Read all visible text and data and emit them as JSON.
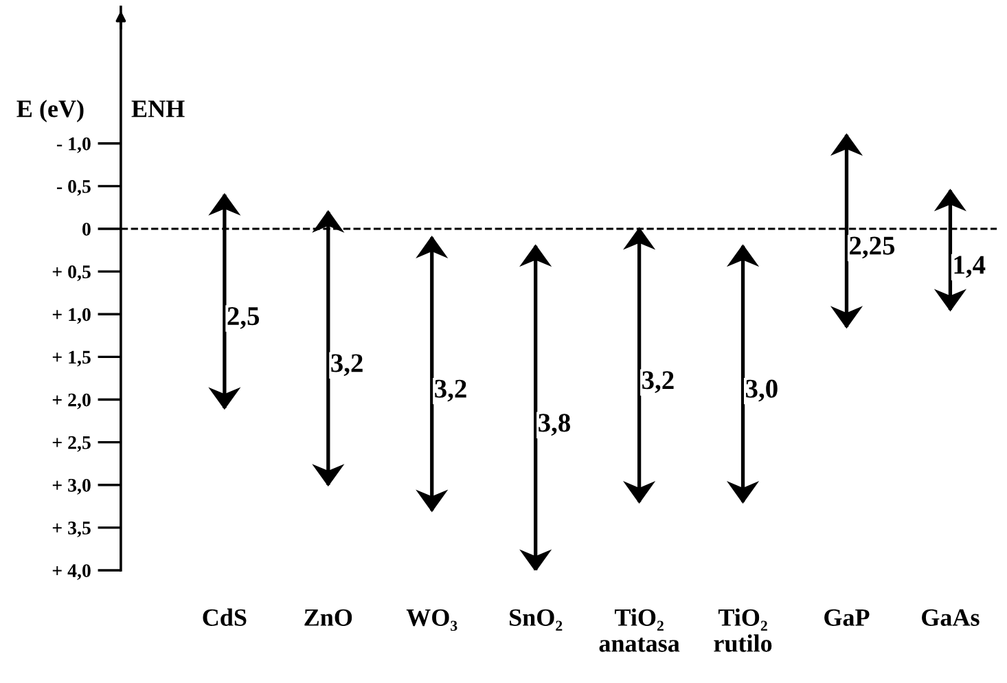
{
  "chart_data": {
    "type": "bar",
    "ylabel": "E (eV)",
    "annotations": [
      "ENH"
    ],
    "categories": [
      "CdS",
      "ZnO",
      "WO₃",
      "SnO₂",
      "TiO₂\nanatasa",
      "TiO₂\nrutilo",
      "GaP",
      "GaAs"
    ],
    "base": [
      -0.4,
      -0.2,
      0.1,
      0.2,
      0.0,
      0.2,
      -1.1,
      -0.45
    ],
    "values": [
      2.5,
      3.2,
      3.2,
      3.8,
      3.2,
      3.0,
      2.25,
      1.4
    ],
    "value_labels": [
      "2,5",
      "3,2",
      "3,2",
      "3,8",
      "3,2",
      "3,0",
      "2,25",
      "1,4"
    ],
    "color": "#000000",
    "ylim": [
      4.0,
      -2.6
    ],
    "yticks": [
      {
        "value": -1.0,
        "label": "- 1,0"
      },
      {
        "value": -0.5,
        "label": "- 0,5"
      },
      {
        "value": 0,
        "label": "0"
      },
      {
        "value": 0.5,
        "label": "+ 0,5"
      },
      {
        "value": 1.0,
        "label": "+ 1,0"
      },
      {
        "value": 1.5,
        "label": "+ 1,5"
      },
      {
        "value": 2.0,
        "label": "+ 2,0"
      },
      {
        "value": 2.5,
        "label": "+ 2,5"
      },
      {
        "value": 3.0,
        "label": "+ 3,0"
      },
      {
        "value": 3.5,
        "label": "+ 3,5"
      },
      {
        "value": 4.0,
        "label": "+ 4,0"
      }
    ],
    "ref_lines": [
      {
        "axis": "y",
        "value": 0,
        "line_style": "dashed",
        "color": "#000000"
      }
    ],
    "grid": false,
    "legend": false
  }
}
